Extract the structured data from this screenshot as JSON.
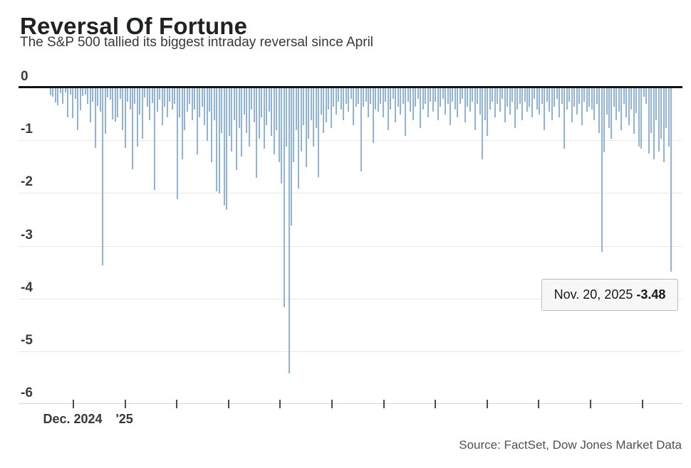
{
  "header": {
    "title": "Reversal Of Fortune",
    "subtitle": "The S&P 500 tallied its biggest intraday reversal since April"
  },
  "source": "Source: FactSet, Dow Jones Market Data",
  "tooltip": {
    "date": "Nov. 20, 2025",
    "value": "-3.48"
  },
  "colors": {
    "bar": "#aecbe9",
    "bar_edge": "#8fb5de",
    "zero_line": "#141414",
    "gridline": "#e8e8e8",
    "tick": "#4c4c4c"
  },
  "chart_data": {
    "type": "bar",
    "title": "Reversal Of Fortune",
    "subtitle": "The S&P 500 tallied its biggest intraday reversal since April",
    "xlabel": "",
    "ylabel": "",
    "ylim": [
      -6,
      0
    ],
    "grid": true,
    "y_tick_labels": [
      "0",
      "-1",
      "-2",
      "-3",
      "-4",
      "-5",
      "-6"
    ],
    "x_tick_count": 12,
    "x_tick_labels": [
      "Dec. 2024",
      "'25"
    ],
    "highlight": {
      "index": 250,
      "label": "Nov. 20, 2025",
      "value": -3.48
    },
    "values": [
      -0.14,
      -0.16,
      -0.27,
      -0.32,
      -0.1,
      -0.3,
      -0.08,
      -0.55,
      -0.12,
      -0.57,
      -0.2,
      -0.79,
      -0.42,
      -0.15,
      -0.12,
      -0.3,
      -0.65,
      -0.25,
      -1.13,
      -0.33,
      -0.45,
      -3.35,
      -0.86,
      -0.18,
      -0.22,
      -0.59,
      -0.63,
      -0.55,
      -0.2,
      -0.8,
      -1.13,
      -0.25,
      -0.4,
      -1.53,
      -0.3,
      -1.1,
      -0.5,
      -0.95,
      -0.18,
      -0.35,
      -0.6,
      -0.28,
      -1.93,
      -0.45,
      -0.22,
      -0.7,
      -0.35,
      -0.55,
      -0.25,
      -0.4,
      -0.3,
      -2.1,
      -0.55,
      -1.35,
      -0.8,
      -0.45,
      -0.3,
      -0.6,
      -0.4,
      -1.25,
      -0.55,
      -0.35,
      -0.7,
      -1.0,
      -0.45,
      -1.4,
      -0.6,
      -1.95,
      -2.0,
      -0.85,
      -2.23,
      -2.3,
      -0.9,
      -1.2,
      -0.6,
      -1.55,
      -0.75,
      -1.3,
      -0.5,
      -0.85,
      -1.1,
      -0.4,
      -0.65,
      -1.7,
      -0.95,
      -0.55,
      -1.15,
      -0.7,
      -0.45,
      -0.9,
      -1.25,
      -0.8,
      -1.4,
      -1.8,
      -4.15,
      -1.1,
      -5.4,
      -2.6,
      -1.4,
      -0.8,
      -1.9,
      -1.2,
      -0.7,
      -1.5,
      -0.95,
      -0.6,
      -1.1,
      -0.75,
      -1.69,
      -0.5,
      -0.85,
      -0.65,
      -0.4,
      -0.75,
      -0.35,
      -0.5,
      -0.25,
      -0.4,
      -0.6,
      -0.3,
      -0.45,
      -0.2,
      -0.7,
      -0.35,
      -0.3,
      -1.58,
      -0.35,
      -0.25,
      -0.55,
      -0.3,
      -1.04,
      -0.4,
      -0.45,
      -0.3,
      -0.55,
      -0.25,
      -0.8,
      -0.4,
      -0.2,
      -0.65,
      -0.35,
      -0.5,
      -0.3,
      -0.9,
      -0.25,
      -0.45,
      -0.6,
      -0.35,
      -0.2,
      -0.75,
      -0.4,
      -0.3,
      -0.55,
      -0.25,
      -0.45,
      -0.25,
      -0.6,
      -0.35,
      -0.2,
      -0.5,
      -0.3,
      -0.7,
      -0.25,
      -0.4,
      -0.55,
      -0.3,
      -0.2,
      -0.65,
      -0.35,
      -0.45,
      -0.25,
      -0.8,
      -0.3,
      -0.5,
      -1.35,
      -0.6,
      -0.9,
      -0.4,
      -0.25,
      -0.55,
      -0.3,
      -0.45,
      -0.2,
      -0.65,
      -0.35,
      -0.5,
      -0.25,
      -0.75,
      -0.4,
      -0.3,
      -0.6,
      -0.25,
      -0.45,
      -0.35,
      -0.55,
      -0.2,
      -0.4,
      -0.5,
      -0.3,
      -0.79,
      -0.25,
      -0.45,
      -0.6,
      -0.35,
      -0.2,
      -0.55,
      -0.3,
      -1.15,
      -0.4,
      -0.25,
      -0.65,
      -0.35,
      -0.5,
      -0.3,
      -0.7,
      -0.25,
      -0.45,
      -0.35,
      -0.4,
      -0.6,
      -0.3,
      -0.85,
      -3.1,
      -1.21,
      -0.5,
      -0.75,
      -0.95,
      -0.35,
      -0.6,
      -0.45,
      -0.8,
      -0.3,
      -0.55,
      -0.7,
      -0.4,
      -0.86,
      -0.47,
      -1.1,
      -1.15,
      -0.16,
      -0.3,
      -1.24,
      -0.85,
      -1.35,
      -0.6,
      -1.2,
      -0.95,
      -1.4,
      -0.75,
      -1.1,
      -3.48
    ]
  }
}
